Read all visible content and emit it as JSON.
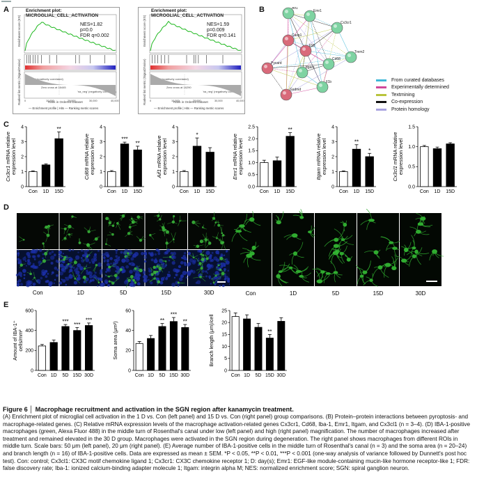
{
  "panels": {
    "a": "A",
    "b": "B",
    "c": "C",
    "d": "D",
    "e": "E"
  },
  "gsea": [
    {
      "title": "Enrichment plot: MICROGLIAL_CELL_ACTIVATION",
      "nes": "NES=1.82",
      "p": "p=0.0",
      "fdr": "FDR q=0.002",
      "ylabel_top": "Enrichment score (ES)",
      "ylabel_bottom": "Ranked list metric (Signal2Noise)",
      "xlabel": "Rank in Ordered Dataset",
      "zero_cross": "Zero cross at 16445",
      "pos_label": "'na_pos' (positively correlated)",
      "neg_label": "'na_neg' (negatively correlated)",
      "legend": [
        "Enrichment profile",
        "Hits",
        "Ranking metric scores"
      ],
      "x_ticks": [
        "0",
        "10,000",
        "20,000",
        "30,000",
        "40,000"
      ]
    },
    {
      "title": "Enrichment plot: MICROGLIAL_CELL_ACTIVATION",
      "nes": "NES=1.59",
      "p": "p=0.009",
      "fdr": "FDR q=0.141",
      "ylabel_top": "Enrichment score (ES)",
      "ylabel_bottom": "Ranked list metric (Signal2Noise)",
      "xlabel": "Rank in Ordered Dataset",
      "zero_cross": "Zero cross at 16290",
      "pos_label": "'na_pos' (positively correlated)",
      "neg_label": "'na_neg' (negatively correlated)",
      "legend": [
        "Enrichment profile",
        "Hits",
        "Ranking metric scores"
      ],
      "x_ticks": [
        "0",
        "10,000",
        "20,000",
        "30,000",
        "40,000"
      ]
    }
  ],
  "network": {
    "nodes": [
      {
        "id": "Aif1",
        "color": "#7ed3a2"
      },
      {
        "id": "Emr1",
        "color": "#7ed3a2"
      },
      {
        "id": "Cx3cr1",
        "color": "#7ed3a2"
      },
      {
        "id": "Casp1",
        "color": "#d96a7a"
      },
      {
        "id": "Il18",
        "color": "#d96a7a"
      },
      {
        "id": "Itgam",
        "color": "#7ed3a2"
      },
      {
        "id": "Cd68",
        "color": "#7ed3a2"
      },
      {
        "id": "Trem2",
        "color": "#7ed3a2"
      },
      {
        "id": "Pycard",
        "color": "#d96a7a"
      },
      {
        "id": "Il1b",
        "color": "#7ed3a2"
      },
      {
        "id": "Gsdmd",
        "color": "#d96a7a"
      }
    ],
    "legend": [
      {
        "label": "From curated databases",
        "color": "#3fb8d8"
      },
      {
        "label": "Experimentally determined",
        "color": "#d0489a"
      },
      {
        "label": "Textmining",
        "color": "#b8c43c"
      },
      {
        "label": "Co-expression",
        "color": "#111111"
      },
      {
        "label": "Protein homology",
        "color": "#a9a3e0"
      }
    ]
  },
  "chart_data": [
    {
      "type": "bar",
      "gene": "Cx3cr1",
      "ylabel_suffix": " mRNA relative expression level",
      "categories": [
        "Con",
        "1D",
        "15D"
      ],
      "values": [
        1.0,
        1.45,
        3.2
      ],
      "errors": [
        0.05,
        0.07,
        0.45
      ],
      "sig": [
        "",
        "",
        "**"
      ],
      "ylim": [
        0,
        4
      ],
      "ticks": [
        "0",
        "1",
        "2",
        "3",
        "4"
      ]
    },
    {
      "type": "bar",
      "gene": "Cd68",
      "ylabel_suffix": " mRNA relative expression level",
      "categories": [
        "Con",
        "1D",
        "15D"
      ],
      "values": [
        1.0,
        2.85,
        2.45
      ],
      "errors": [
        0.07,
        0.12,
        0.25
      ],
      "sig": [
        "",
        "***",
        "**"
      ],
      "ylim": [
        0,
        4
      ],
      "ticks": [
        "0",
        "1",
        "2",
        "3",
        "4"
      ]
    },
    {
      "type": "bar",
      "gene": "Aif1",
      "ylabel_suffix": " mRNA relative expression level",
      "categories": [
        "Con",
        "1D",
        "15D"
      ],
      "values": [
        1.0,
        2.7,
        2.3
      ],
      "errors": [
        0.07,
        0.55,
        0.3
      ],
      "sig": [
        "",
        "*",
        ""
      ],
      "ylim": [
        0,
        4
      ],
      "ticks": [
        "0",
        "1",
        "2",
        "3",
        "4"
      ]
    },
    {
      "type": "bar",
      "gene": "Emr1",
      "ylabel_suffix": " mRNA relative expression level",
      "categories": [
        "Con",
        "1D",
        "15D"
      ],
      "values": [
        1.0,
        1.08,
        2.1
      ],
      "errors": [
        0.1,
        0.15,
        0.15
      ],
      "sig": [
        "",
        "",
        "**"
      ],
      "ylim": [
        0,
        2.5
      ],
      "ticks": [
        "0.0",
        "0.5",
        "1.0",
        "1.5",
        "2.0",
        "2.5"
      ]
    },
    {
      "type": "bar",
      "gene": "Itgam",
      "ylabel_suffix": " mRNA relative expression level",
      "categories": [
        "Con",
        "1D",
        "15D"
      ],
      "values": [
        1.0,
        2.5,
        2.0
      ],
      "errors": [
        0.05,
        0.3,
        0.22
      ],
      "sig": [
        "",
        "**",
        "*"
      ],
      "ylim": [
        0,
        4
      ],
      "ticks": [
        "0",
        "1",
        "2",
        "3",
        "4"
      ]
    },
    {
      "type": "bar",
      "gene": "Cx3cl1",
      "ylabel_suffix": " mRNA relative expression level",
      "categories": [
        "Con",
        "1D",
        "15D"
      ],
      "values": [
        1.0,
        0.95,
        1.07
      ],
      "errors": [
        0.03,
        0.04,
        0.03
      ],
      "sig": [
        "",
        "",
        ""
      ],
      "ylim": [
        0,
        1.5
      ],
      "ticks": [
        "0.0",
        "0.5",
        "1.0",
        "1.5"
      ]
    },
    {
      "type": "bar",
      "ylabel": "Amount of IBA-1⁺ cells/mm²",
      "categories": [
        "Con",
        "1D",
        "5D",
        "15D",
        "30D"
      ],
      "values": [
        245,
        280,
        440,
        400,
        450
      ],
      "errors": [
        15,
        25,
        20,
        30,
        25
      ],
      "sig": [
        "",
        "",
        "***",
        "***",
        "***"
      ],
      "ylim": [
        0,
        600
      ],
      "ticks": [
        "0",
        "200",
        "400",
        "600"
      ]
    },
    {
      "type": "bar",
      "ylabel": "Soma area (μm²)",
      "categories": [
        "Con",
        "1D",
        "5D",
        "15D",
        "30D"
      ],
      "values": [
        27,
        32,
        44,
        49,
        43
      ],
      "errors": [
        2,
        3,
        3,
        4,
        3
      ],
      "sig": [
        "",
        "",
        "**",
        "***",
        "**"
      ],
      "ylim": [
        0,
        60
      ],
      "ticks": [
        "0",
        "20",
        "40",
        "60"
      ]
    },
    {
      "type": "bar",
      "ylabel": "Branch length (μm)/cell",
      "categories": [
        "Con",
        "1D",
        "5D",
        "15D",
        "30D"
      ],
      "values": [
        22.5,
        21.5,
        18,
        13.5,
        20.5
      ],
      "errors": [
        1.5,
        1.7,
        1.6,
        1.5,
        1.5
      ],
      "sig": [
        "",
        "",
        "",
        "**",
        ""
      ],
      "ylim": [
        0,
        25
      ],
      "ticks": [
        "0",
        "5",
        "10",
        "15",
        "20",
        "25"
      ]
    }
  ],
  "micro": {
    "left_labels": [
      "Con",
      "1D",
      "5D",
      "15D",
      "30D"
    ],
    "right_labels": [
      "Con",
      "1D",
      "5D",
      "15D",
      "30D"
    ]
  },
  "caption": {
    "title": "Figure 6 │ Macrophage recruitment and activation in the SGN region after kanamycin treatment.",
    "body": "(A) Enrichment plot of microglial cell activation in the 1 D vs. Con (left panel) and 15 D vs. Con (right panel) group comparisons. (B) Protein–protein interactions between pyroptosis- and macrophage-related genes. (C) Relative mRNA expression levels of the macrophage activation-related genes Cx3cr1, Cd68, Iba-1, Emr1, Itgam, and Cx3cl1 (n = 3–4). (D) IBA-1-positive macrophages (green, Alexa Fluor 488) in the middle turn of Rosenthal's canal under low (left panel) and high (right panel) magnification. The number of macrophages increased after treatment and remained elevated in the 30 D group. Macrophages were activated in the SGN region during degeneration. The right panel shows macrophages from different ROIs in middle turn. Scale bars: 50 μm (left panel), 20 μm (right panel). (E) Average number of IBA-1-positive cells in the middle turn of Rosenthal's canal (n = 3) and the soma area (n = 20–24) and branch length (n = 16) of IBA-1-positive cells. Data are expressed as mean ± SEM. *P < 0.05, **P < 0.01, ***P < 0.001 (one-way analysis of variance followed by Dunnett's post hoc test). Con: control; Cx3cl1: CX3C motif chemokine ligand 1; Cx3cr1: CX3C chemokine receptor 1; D: day(s); Emr1: EGF-like module-containing mucin-like hormone receptor-like 1; FDR: false discovery rate; Iba-1: ionized calcium-binding adapter molecule 1; Itgam: integrin alpha M; NES: normalized enrichment score; SGN: spiral ganglion neuron."
  }
}
